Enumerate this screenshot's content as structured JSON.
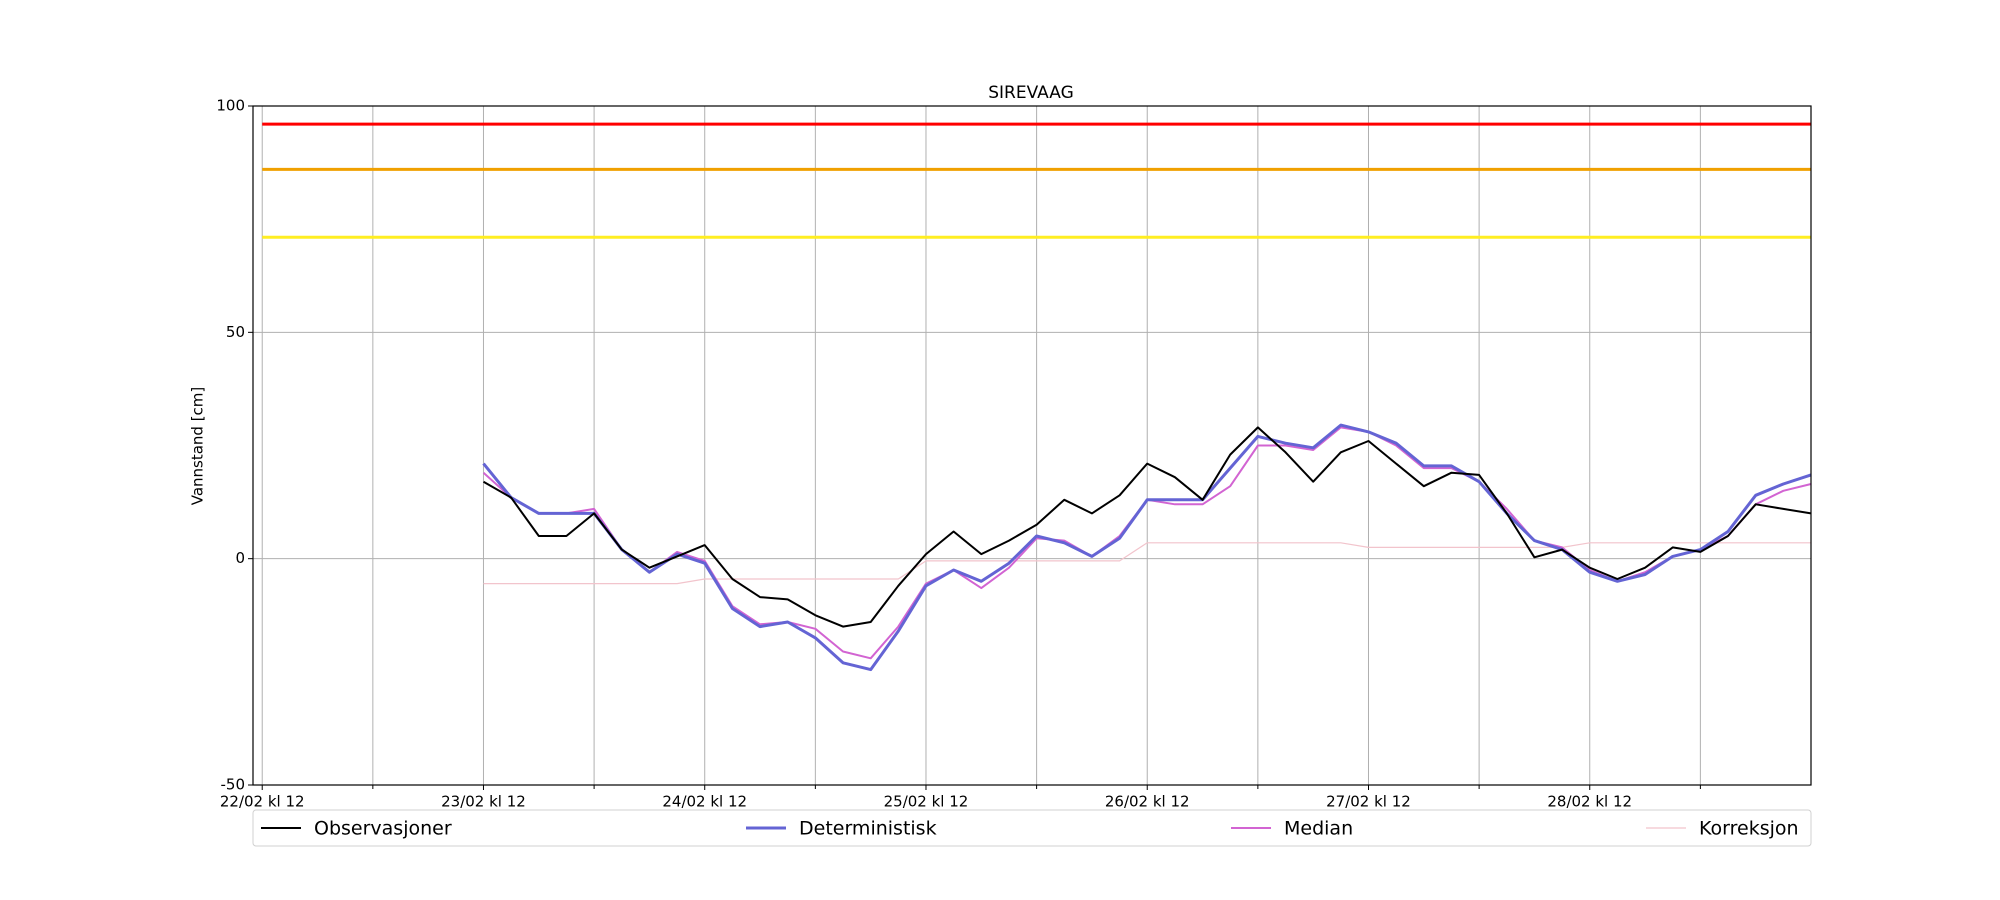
{
  "chart_data": {
    "type": "line",
    "title": "SIREVAAG",
    "y_label": "Vannstand [cm]",
    "x": [
      "23/02 kl 12",
      "23/02 kl 15",
      "23/02 kl 18",
      "23/02 kl 21",
      "24/02 kl 00",
      "24/02 kl 03",
      "24/02 kl 06",
      "24/02 kl 09",
      "24/02 kl 12",
      "24/02 kl 15",
      "24/02 kl 18",
      "24/02 kl 21",
      "25/02 kl 00",
      "25/02 kl 03",
      "25/02 kl 06",
      "25/02 kl 09",
      "25/02 kl 12",
      "25/02 kl 15",
      "25/02 kl 18",
      "25/02 kl 21",
      "26/02 kl 00",
      "26/02 kl 03",
      "26/02 kl 06",
      "26/02 kl 09",
      "26/02 kl 12",
      "26/02 kl 15",
      "26/02 kl 18",
      "26/02 kl 21",
      "27/02 kl 00",
      "27/02 kl 03",
      "27/02 kl 06",
      "27/02 kl 09",
      "27/02 kl 12",
      "27/02 kl 15",
      "27/02 kl 18",
      "27/02 kl 21",
      "28/02 kl 00",
      "28/02 kl 03",
      "28/02 kl 06",
      "28/02 kl 09",
      "28/02 kl 12",
      "28/02 kl 15",
      "28/02 kl 18",
      "28/02 kl 21",
      "29/02 kl 00",
      "29/02 kl 03",
      "29/02 kl 06",
      "29/02 kl 09",
      "29/02 kl 12"
    ],
    "series": [
      {
        "name": "Observasjoner",
        "color": "#000000",
        "width": 2,
        "values": [
          17,
          13.5,
          5,
          5,
          10,
          2,
          -2,
          0.5,
          3,
          -4.5,
          -8.5,
          -9,
          -12.5,
          -15,
          -14,
          -6,
          1,
          6,
          1,
          4,
          7.5,
          13,
          10,
          14,
          21,
          18,
          13,
          23,
          29,
          23.5,
          17,
          23.5,
          26,
          21,
          16,
          19,
          18.5,
          10,
          0.3,
          2,
          -2,
          -4.5,
          -2,
          2.5,
          1.5,
          5,
          12,
          11,
          10
        ]
      },
      {
        "name": "Deterministisk",
        "color": "#6464d4",
        "width": 3,
        "values": [
          21,
          13.5,
          10,
          10,
          10,
          2,
          -3,
          1,
          -1,
          -11,
          -15,
          -14,
          -17.5,
          -23,
          -24.5,
          -16,
          -6,
          -2.5,
          -5,
          -1,
          5,
          3.5,
          0.5,
          4.5,
          13,
          13,
          13,
          20,
          27,
          25.5,
          24.5,
          29.5,
          28,
          25.5,
          20.5,
          20.5,
          17,
          10,
          4,
          2,
          -3,
          -5,
          -3.5,
          0.5,
          2,
          6,
          14,
          16.5,
          18.5
        ]
      },
      {
        "name": "Median",
        "color": "#d264d2",
        "width": 2,
        "values": [
          19,
          13.5,
          10,
          10,
          11,
          2,
          -3,
          1.5,
          -0.5,
          -10.5,
          -14.5,
          -14,
          -15.5,
          -20.5,
          -22,
          -15,
          -5.5,
          -2.5,
          -6.5,
          -2,
          4.5,
          4,
          0.5,
          5,
          13,
          12,
          12,
          16,
          25,
          25,
          24,
          29,
          28,
          25,
          20,
          20,
          17,
          11,
          4,
          2.5,
          -2.5,
          -5,
          -3,
          0.5,
          2,
          5,
          12,
          15,
          16.5
        ]
      },
      {
        "name": "Korreksjon",
        "color": "#f2c4cc",
        "width": 1.2,
        "values": [
          -5.5,
          -5.5,
          -5.5,
          -5.5,
          -5.5,
          -5.5,
          -5.5,
          -5.5,
          -4.5,
          -4.5,
          -4.5,
          -4.5,
          -4.5,
          -4.5,
          -4.5,
          -4.5,
          -0.5,
          -0.5,
          -0.5,
          -0.5,
          -0.5,
          -0.5,
          -0.5,
          -0.5,
          3.5,
          3.5,
          3.5,
          3.5,
          3.5,
          3.5,
          3.5,
          3.5,
          2.5,
          2.5,
          2.5,
          2.5,
          2.5,
          2.5,
          2.5,
          2.5,
          3.5,
          3.5,
          3.5,
          3.5,
          3.5,
          3.5,
          3.5,
          3.5,
          3.5
        ]
      }
    ],
    "thresholds": [
      {
        "value": 96,
        "color": "#ff0000"
      },
      {
        "value": 86,
        "color": "#f0a000"
      },
      {
        "value": 71,
        "color": "#ffee22"
      }
    ],
    "xlim": [
      "22/02 kl 11",
      "29/02 kl 12"
    ],
    "xticks": [
      "22/02 kl 12",
      "23/02 kl 12",
      "24/02 kl 12",
      "25/02 kl 12",
      "26/02 kl 12",
      "27/02 kl 12",
      "28/02 kl 12"
    ],
    "xminorticks": [
      "23/02 kl 00",
      "24/02 kl 00",
      "25/02 kl 00",
      "26/02 kl 00",
      "27/02 kl 00",
      "28/02 kl 00",
      "29/02 kl 00"
    ],
    "ylim": [
      -50,
      100
    ],
    "yticks": [
      -50,
      0,
      50,
      100
    ],
    "grid": true
  }
}
